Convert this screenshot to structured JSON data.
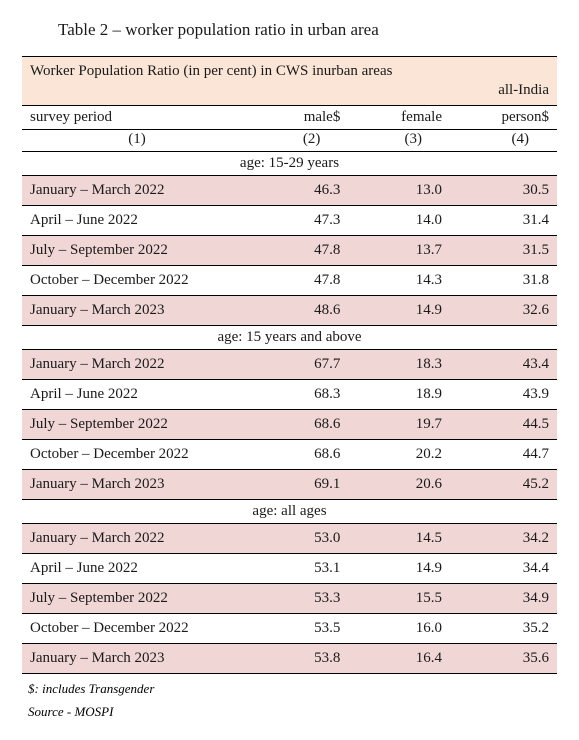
{
  "title": "Table 2 – worker population ratio in urban area",
  "banner_line1": "Worker Population Ratio (in per cent) in CWS inurban areas",
  "banner_line2": "all-India",
  "columns": {
    "c1": "survey period",
    "c2": "male$",
    "c3": "female",
    "c4": "person$",
    "n1": "(1)",
    "n2": "(2)",
    "n3": "(3)",
    "n4": "(4)"
  },
  "sections": [
    {
      "label": "age: 15-29 years",
      "rows": [
        {
          "period": "January – March 2022",
          "male": "46.3",
          "female": "13.0",
          "person": "30.5"
        },
        {
          "period": "April – June 2022",
          "male": "47.3",
          "female": "14.0",
          "person": "31.4"
        },
        {
          "period": "July – September 2022",
          "male": "47.8",
          "female": "13.7",
          "person": "31.5"
        },
        {
          "period": "October – December 2022",
          "male": "47.8",
          "female": "14.3",
          "person": "31.8"
        },
        {
          "period": "January – March 2023",
          "male": "48.6",
          "female": "14.9",
          "person": "32.6"
        }
      ]
    },
    {
      "label": "age: 15 years and above",
      "rows": [
        {
          "period": "January – March 2022",
          "male": "67.7",
          "female": "18.3",
          "person": "43.4"
        },
        {
          "period": "April – June 2022",
          "male": "68.3",
          "female": "18.9",
          "person": "43.9"
        },
        {
          "period": "July – September 2022",
          "male": "68.6",
          "female": "19.7",
          "person": "44.5"
        },
        {
          "period": "October – December 2022",
          "male": "68.6",
          "female": "20.2",
          "person": "44.7"
        },
        {
          "period": "January – March 2023",
          "male": "69.1",
          "female": "20.6",
          "person": "45.2"
        }
      ]
    },
    {
      "label": "age: all ages",
      "rows": [
        {
          "period": "January – March 2022",
          "male": "53.0",
          "female": "14.5",
          "person": "34.2"
        },
        {
          "period": "April – June 2022",
          "male": "53.1",
          "female": "14.9",
          "person": "34.4"
        },
        {
          "period": "July – September 2022",
          "male": "53.3",
          "female": "15.5",
          "person": "34.9"
        },
        {
          "period": "October – December 2022",
          "male": "53.5",
          "female": "16.0",
          "person": "35.2"
        },
        {
          "period": "January – March 2023",
          "male": "53.8",
          "female": "16.4",
          "person": "35.6"
        }
      ]
    }
  ],
  "footnote1": "$: includes Transgender",
  "footnote2": "Source - MOSPI",
  "style": {
    "zebra_color": "#f1d6d6",
    "banner_color": "#fbe5d6",
    "text_color": "#1a1a1a",
    "font_family": "Georgia, Times New Roman, serif",
    "title_fontsize": 17,
    "body_fontsize": 15,
    "footnote_fontsize": 13
  }
}
